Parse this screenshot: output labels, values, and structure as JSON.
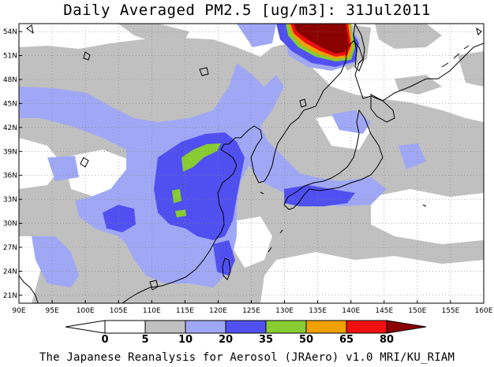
{
  "title": "Daily Averaged PM2.5 [ug/m3]: 31Jul2011",
  "credit": "The Japanese Reanalysis for Aerosol (JRAero) v1.0 MRI/KU_RIAM",
  "map": {
    "lon_range": [
      90,
      160
    ],
    "lat_range": [
      20,
      55
    ],
    "lon_ticks": [
      "90E",
      "95E",
      "100E",
      "105E",
      "110E",
      "115E",
      "120E",
      "125E",
      "130E",
      "135E",
      "140E",
      "145E",
      "150E",
      "155E",
      "160E"
    ],
    "lat_ticks": [
      "21N",
      "24N",
      "27N",
      "30N",
      "33N",
      "36N",
      "39N",
      "42N",
      "45N",
      "48N",
      "51N",
      "54N"
    ],
    "gridlines": true
  },
  "colorbar": {
    "labels": [
      "0",
      "5",
      "10",
      "20",
      "35",
      "50",
      "65",
      "80"
    ],
    "colors": [
      "#ffffff",
      "#c0c0c0",
      "#a0a8f5",
      "#5050f0",
      "#88cc33",
      "#f0a000",
      "#f01010",
      "#8b0000"
    ]
  }
}
